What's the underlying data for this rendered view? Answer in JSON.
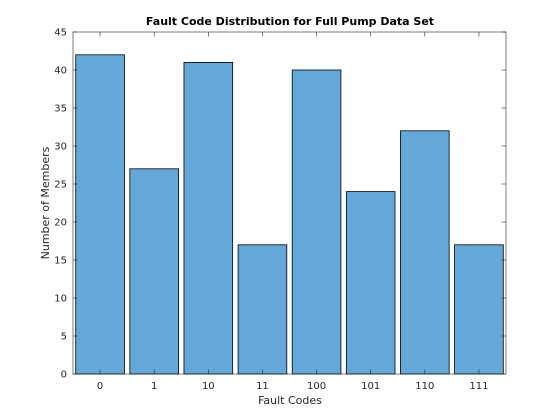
{
  "chart_data": {
    "type": "bar",
    "title": "Fault Code Distribution for Full Pump Data Set",
    "xlabel": "Fault Codes",
    "ylabel": "Number of Members",
    "categories": [
      "0",
      "1",
      "10",
      "11",
      "100",
      "101",
      "110",
      "111"
    ],
    "values": [
      42,
      27,
      41,
      17,
      40,
      24,
      32,
      17
    ],
    "ylim": [
      0,
      45
    ],
    "yticks": [
      "0",
      "5",
      "10",
      "15",
      "20",
      "25",
      "30",
      "35",
      "40",
      "45"
    ],
    "grid": false,
    "legend": "none",
    "bar_color": "#63A8D8",
    "edge_color": "#000000"
  }
}
